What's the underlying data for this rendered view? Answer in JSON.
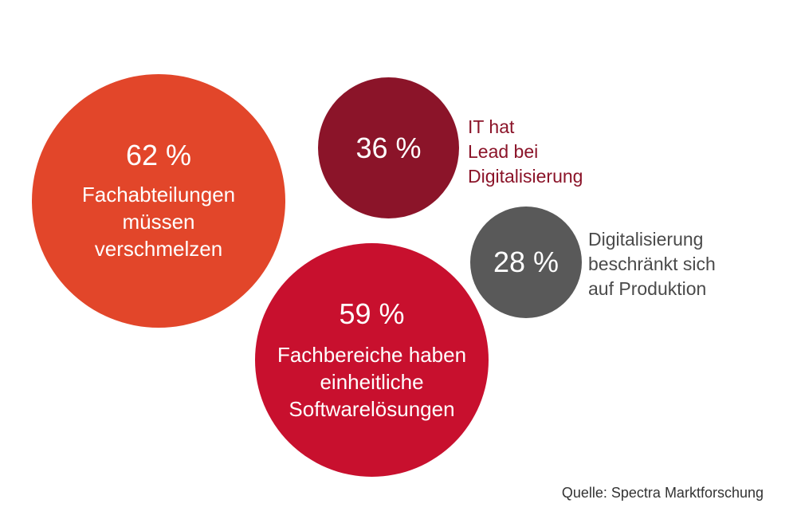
{
  "chart_data": {
    "type": "bubble",
    "series": [
      {
        "value": 62,
        "value_label": "62 %",
        "label": "Fachabteilungen\nmüssen\nverschmelzen",
        "label_position": "inside",
        "color": "#e2462a"
      },
      {
        "value": 36,
        "value_label": "36 %",
        "label": "IT hat\nLead bei\nDigitalisierung",
        "label_position": "outside-right",
        "color": "#8b1429"
      },
      {
        "value": 28,
        "value_label": "28 %",
        "label": "Digitalisierung\nbeschränkt sich\nauf Produktion",
        "label_position": "outside-right",
        "color": "#595959"
      },
      {
        "value": 59,
        "value_label": "59 %",
        "label": "Fachbereiche haben\neinheitliche\nSoftwarelösungen",
        "label_position": "inside",
        "color": "#c8102e"
      }
    ],
    "source": "Quelle: Spectra Marktforschung"
  }
}
